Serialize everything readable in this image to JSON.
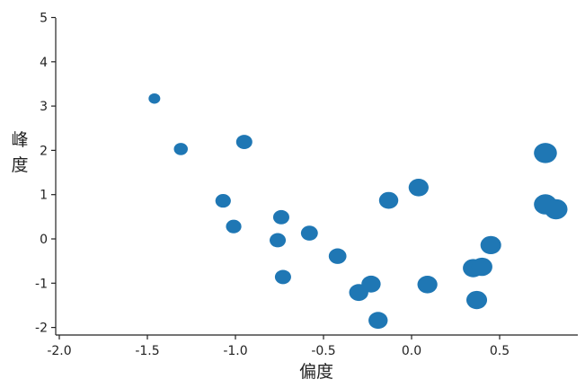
{
  "chart_data": {
    "type": "scatter",
    "xlabel": "偏度",
    "ylabel": "峰度",
    "xlim": [
      -2.1,
      0.95
    ],
    "ylim": [
      -2.2,
      5.0
    ],
    "x_ticks": [
      -2.0,
      -1.5,
      -1.0,
      -0.5,
      0.0,
      0.5
    ],
    "x_tick_labels": [
      "-2.0",
      "-1.5",
      "-1.0",
      "-0.5",
      "0.0",
      "0.5"
    ],
    "y_ticks": [
      -2,
      -1,
      0,
      1,
      2,
      3,
      4,
      5
    ],
    "y_tick_labels": [
      "-2",
      "-1",
      "0",
      "1",
      "2",
      "3",
      "4",
      "5"
    ],
    "grid": false,
    "color": "#1f77b4",
    "points": [
      {
        "x": -1.46,
        "y": 3.17,
        "size": 1
      },
      {
        "x": -1.31,
        "y": 2.03,
        "size": 1.3
      },
      {
        "x": -0.95,
        "y": 2.19,
        "size": 1.6
      },
      {
        "x": -1.07,
        "y": 0.86,
        "size": 1.5
      },
      {
        "x": -1.01,
        "y": 0.28,
        "size": 1.5
      },
      {
        "x": -0.74,
        "y": 0.49,
        "size": 1.6
      },
      {
        "x": -0.76,
        "y": -0.03,
        "size": 1.6
      },
      {
        "x": -0.73,
        "y": -0.86,
        "size": 1.6
      },
      {
        "x": -0.58,
        "y": 0.13,
        "size": 1.7
      },
      {
        "x": -0.42,
        "y": -0.39,
        "size": 1.8
      },
      {
        "x": -0.3,
        "y": -1.21,
        "size": 2
      },
      {
        "x": -0.23,
        "y": -1.02,
        "size": 2
      },
      {
        "x": -0.19,
        "y": -1.84,
        "size": 2
      },
      {
        "x": -0.13,
        "y": 0.87,
        "size": 2
      },
      {
        "x": 0.04,
        "y": 1.16,
        "size": 2.1
      },
      {
        "x": 0.09,
        "y": -1.03,
        "size": 2.1
      },
      {
        "x": 0.35,
        "y": -0.66,
        "size": 2.2
      },
      {
        "x": 0.4,
        "y": -0.63,
        "size": 2.2
      },
      {
        "x": 0.37,
        "y": -1.38,
        "size": 2.2
      },
      {
        "x": 0.45,
        "y": -0.14,
        "size": 2.2
      },
      {
        "x": 0.76,
        "y": 1.94,
        "size": 2.5
      },
      {
        "x": 0.76,
        "y": 0.78,
        "size": 2.5
      },
      {
        "x": 0.82,
        "y": 0.67,
        "size": 2.5
      }
    ]
  }
}
